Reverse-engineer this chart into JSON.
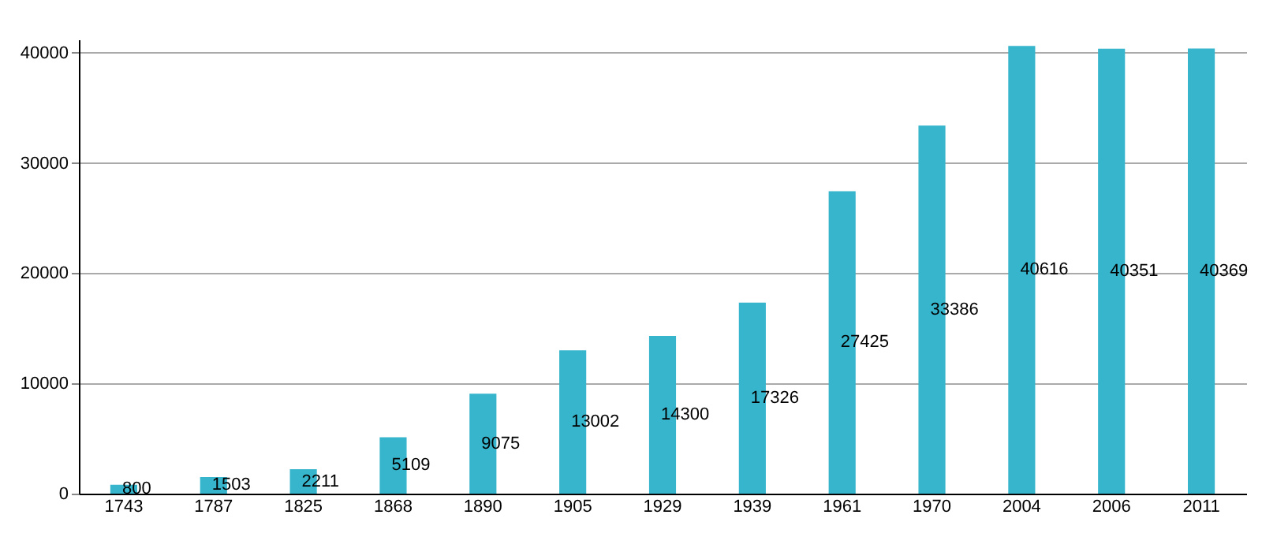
{
  "chart_data": {
    "type": "bar",
    "categories": [
      "1743",
      "1787",
      "1825",
      "1868",
      "1890",
      "1905",
      "1929",
      "1939",
      "1961",
      "1970",
      "2004",
      "2006",
      "2011"
    ],
    "values": [
      800,
      1503,
      2211,
      5109,
      9075,
      13002,
      14300,
      17326,
      27425,
      33386,
      40616,
      40351,
      40369
    ],
    "color": "#36b5cc",
    "ylim": [
      0,
      41200
    ],
    "yticks": [
      0,
      10000,
      20000,
      30000,
      40000
    ],
    "grid": "y",
    "data_labels": true
  }
}
